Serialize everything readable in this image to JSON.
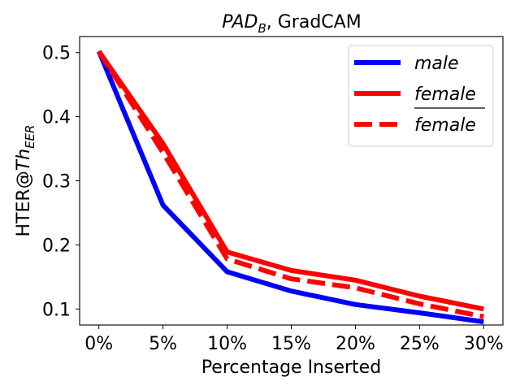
{
  "chart_data": {
    "type": "line",
    "title": {
      "italic": "PAD",
      "sub": "B",
      "rest": ", GradCAM"
    },
    "xlabel": "Percentage Inserted",
    "ylabel": {
      "main": "HTER@",
      "italic": "Th",
      "sub": "EER"
    },
    "categories": [
      "0%",
      "5%",
      "10%",
      "15%",
      "20%",
      "25%",
      "30%"
    ],
    "x": [
      0,
      5,
      10,
      15,
      20,
      25,
      30
    ],
    "xlim": [
      -1.5,
      31.5
    ],
    "ylim": [
      0.075,
      0.525
    ],
    "yticks": [
      0.1,
      0.2,
      0.3,
      0.4,
      0.5
    ],
    "yticklabels": [
      "0.1",
      "0.2",
      "0.3",
      "0.4",
      "0.5"
    ],
    "legend_position": "top-right",
    "series": [
      {
        "name": "male",
        "color": "#0000ff",
        "style": "solid",
        "overline": false,
        "values": [
          0.502,
          0.262,
          0.158,
          0.128,
          0.107,
          0.094,
          0.08
        ]
      },
      {
        "name": "female",
        "color": "#ff0000",
        "style": "solid",
        "overline": false,
        "values": [
          0.502,
          0.358,
          0.189,
          0.16,
          0.145,
          0.12,
          0.1
        ]
      },
      {
        "name": "female",
        "color": "#ff0000",
        "style": "dashed",
        "overline": true,
        "values": [
          0.502,
          0.344,
          0.178,
          0.147,
          0.133,
          0.108,
          0.088
        ]
      }
    ]
  }
}
